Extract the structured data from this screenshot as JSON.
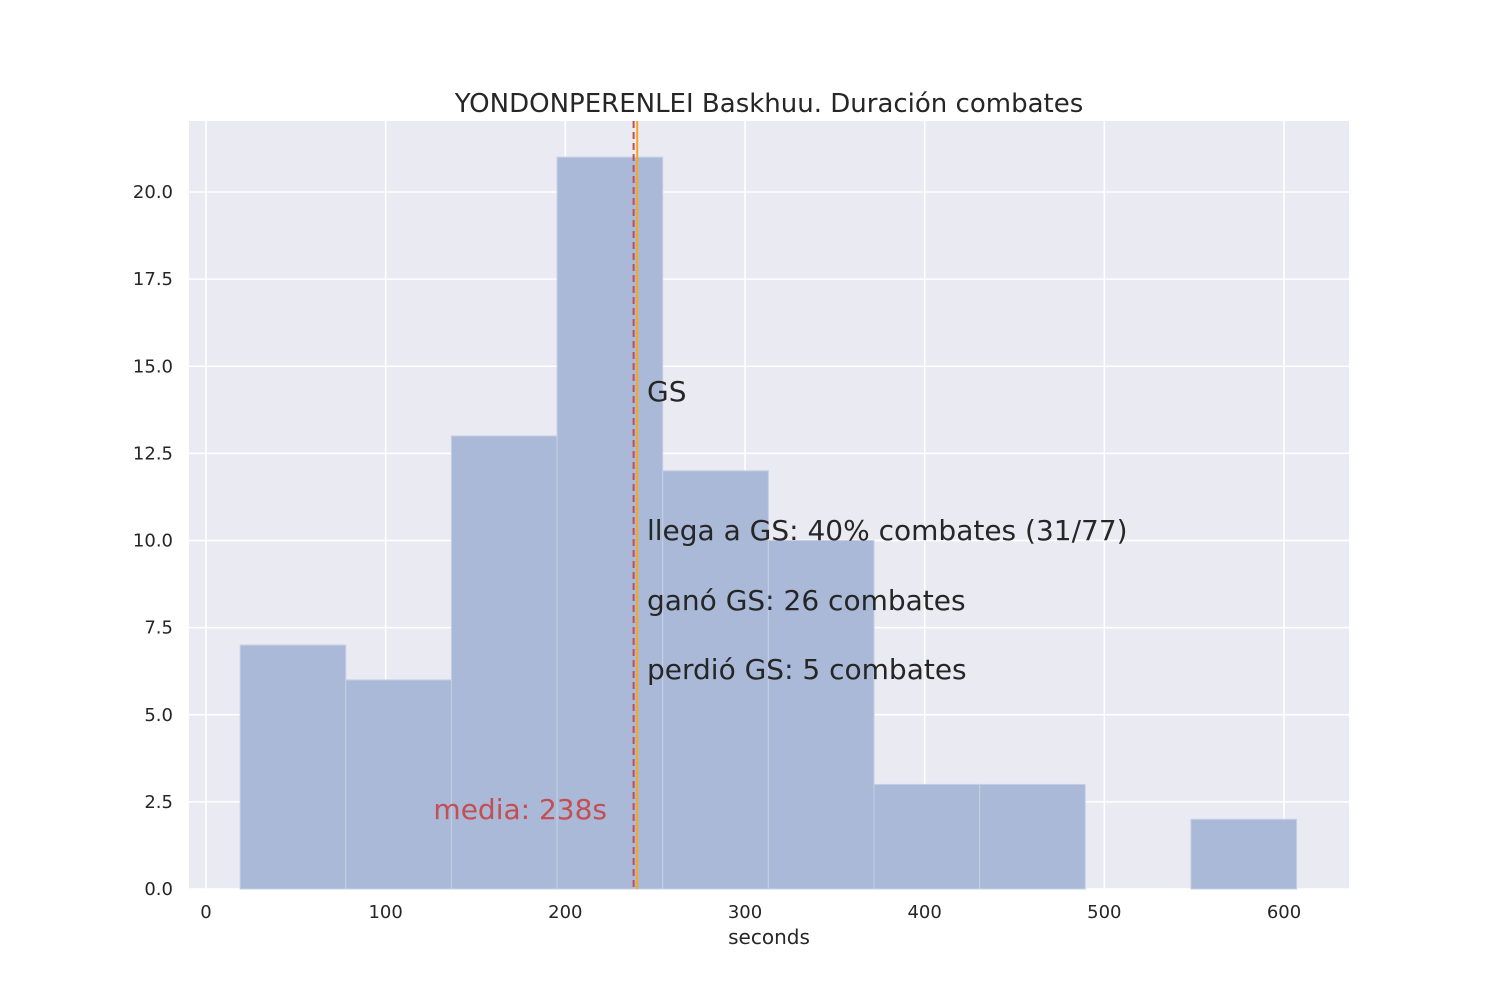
{
  "chart_data": {
    "type": "bar",
    "title": "YONDONPERENLEI Baskhuu. Duración combates",
    "xlabel": "seconds",
    "ylabel": "",
    "xlim": [
      -10,
      635
    ],
    "ylim": [
      0,
      22
    ],
    "xticks": [
      0,
      100,
      200,
      300,
      400,
      500,
      600
    ],
    "yticks": [
      0.0,
      2.5,
      5.0,
      7.5,
      10.0,
      12.5,
      15.0,
      17.5,
      20.0
    ],
    "xtick_labels": [
      "0",
      "100",
      "200",
      "300",
      "400",
      "500",
      "600"
    ],
    "ytick_labels": [
      "0.0",
      "2.5",
      "5.0",
      "7.5",
      "10.0",
      "12.5",
      "15.0",
      "17.5",
      "20.0"
    ],
    "bin_edges": [
      19,
      77.8,
      136.6,
      195.4,
      254.2,
      313,
      371.8,
      430.6,
      489.4,
      548.2,
      607
    ],
    "values": [
      7,
      6,
      13,
      21,
      12,
      10,
      3,
      3,
      0,
      2
    ],
    "grid": true,
    "vlines": [
      {
        "name": "media",
        "x": 238,
        "color": "#c44e52",
        "style": "dashed"
      },
      {
        "name": "GS",
        "x": 240,
        "color": "#f5a623",
        "style": "solid"
      }
    ],
    "annotations": {
      "gs": "GS",
      "reach": "llega a GS: 40% combates (31/77)",
      "won": "ganó GS: 26 combates",
      "lost": "perdió GS: 5 combates",
      "mean": "media: 238s"
    },
    "colors": {
      "bar": "#a9b9d7",
      "bar_edge": "#c6d0e4",
      "background": "#eaeaf2",
      "grid": "#ffffff",
      "mean_line": "#c44e52",
      "gs_line": "#f5a623"
    }
  }
}
